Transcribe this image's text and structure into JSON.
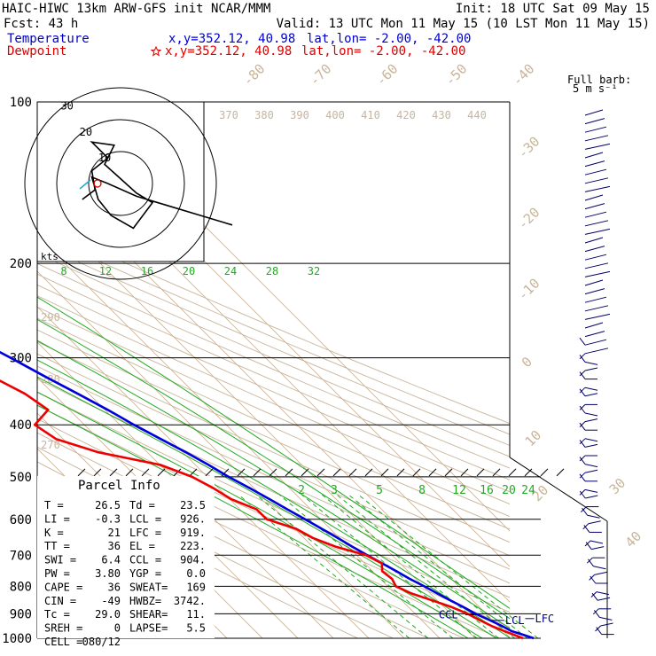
{
  "header": {
    "model": "HAIC-HIWC 13km ARW-GFS init   NCAR/MMM",
    "init": "Init: 18 UTC Sat 09 May 15",
    "fcst": "Fcst:   43 h",
    "valid": "Valid: 13 UTC Mon 11 May 15 (10 LST Mon 11 May 15)",
    "temp_label": "Temperature",
    "temp_xy": "x,y=352.12, 40.98",
    "temp_latlon": "lat,lon= -2.00, -42.00",
    "dew_label": "Dewpoint",
    "dew_xy": "x,y=352.12, 40.98",
    "dew_latlon": "lat,lon= -2.00, -42.00",
    "star_icon": "star-icon"
  },
  "colors": {
    "temperature": "#0000dd",
    "dewpoint": "#ee0000",
    "isotherm": "#c8b49a",
    "dry_adiabat": "#c8b49a",
    "moist_adiabat": "#22aa22",
    "mixing_ratio": "#22aa22",
    "isobar": "#000000"
  },
  "chart_data": {
    "type": "line",
    "title": "",
    "pressure_levels": [
      "100",
      "200",
      "300",
      "400",
      "500",
      "600",
      "700",
      "800",
      "900",
      "1000"
    ],
    "isotherm_labels": [
      "-80",
      "-70",
      "-60",
      "-50",
      "-40",
      "-30",
      "-20",
      "-10",
      "0",
      "10",
      "20",
      "30",
      "40"
    ],
    "theta_labels": [
      "370",
      "380",
      "390",
      "400",
      "410",
      "420",
      "430",
      "440"
    ],
    "theta_lower_labels": [
      "290",
      "280",
      "270"
    ],
    "mixing_upper_labels": [
      "8",
      "12",
      "16",
      "20",
      "24",
      "28",
      "32"
    ],
    "mixing_lower_labels": [
      "2",
      "3",
      "5",
      "8",
      "12",
      "16",
      "20",
      "24"
    ],
    "series": [
      {
        "kind": "temperature",
        "pressure": [
          1000,
          985,
          970,
          950,
          925,
          900,
          875,
          850,
          825,
          800,
          775,
          750,
          725,
          700,
          675,
          650,
          625,
          600,
          575,
          550,
          525,
          500,
          475,
          450,
          425,
          400,
          375,
          350,
          325,
          300,
          275,
          250,
          225,
          200,
          175,
          150,
          125,
          100
        ],
        "temp": [
          26.5,
          24.5,
          22.3,
          21.1,
          19.2,
          17.0,
          15.5,
          13.7,
          12.0,
          10.3,
          8.3,
          6.7,
          4.9,
          3.0,
          1.2,
          -0.5,
          -2.4,
          -4.4,
          -6.6,
          -8.8,
          -11.2,
          -14.0,
          -16.3,
          -19.1,
          -22.5,
          -26.0,
          -29.2,
          -33.1,
          -37.5,
          -41.9,
          -47.0,
          -52.3,
          -57.6,
          -63.5,
          -70.0,
          -76.6,
          -80.9,
          -81.3
        ]
      },
      {
        "kind": "dewpoint",
        "pressure": [
          1000,
          975,
          950,
          925,
          900,
          875,
          850,
          825,
          800,
          775,
          750,
          725,
          700,
          675,
          650,
          625,
          600,
          575,
          550,
          525,
          500,
          475,
          450,
          425,
          400,
          375,
          350,
          325,
          300,
          275,
          250,
          225,
          200,
          175,
          150,
          125,
          100
        ],
        "temp": [
          23.5,
          20.8,
          18.2,
          16.4,
          14.8,
          12.2,
          8.6,
          4.7,
          2.3,
          3.3,
          2.7,
          4.8,
          2.7,
          -3.5,
          -7.5,
          -9.6,
          -15.2,
          -15.3,
          -19.6,
          -21.5,
          -24.3,
          -29.9,
          -43.8,
          -52.0,
          -54.0,
          -46.0,
          -48.0,
          -52.5,
          -54.0,
          -55.0,
          -69.5,
          -72.0,
          -67.0,
          -72.0,
          -81.5,
          -91.5,
          -102.5
        ]
      }
    ],
    "levels_marked": [
      {
        "label": "EL",
        "pressure": 223
      },
      {
        "label": "CCL",
        "pressure": 904
      },
      {
        "label": "LCL",
        "pressure": 926
      },
      {
        "label": "LFC",
        "pressure": 919
      }
    ],
    "wind_header": "Full barb:",
    "wind_unit": "5 m s⁻¹",
    "hodograph": {
      "units": "kts",
      "ring_labels": [
        "10",
        "20",
        "30"
      ],
      "u": [
        -12,
        -8,
        -9,
        -4,
        -9,
        -2,
        -5,
        5,
        10,
        4,
        -3,
        -7,
        -9,
        -4,
        5,
        15,
        25,
        35
      ],
      "v": [
        -5,
        -2,
        4,
        8,
        13,
        12,
        6,
        -3,
        -6,
        -14,
        -10,
        -5,
        2,
        0,
        -4,
        -7,
        -10,
        -13
      ]
    }
  },
  "parcel_info": {
    "title": "Parcel Info",
    "rows": [
      {
        "k1": "T   =",
        "v1": "26.5",
        "k2": "Td =",
        "v2": "23.5"
      },
      {
        "k1": "LI  =",
        "v1": "-0.3",
        "k2": "LCL =",
        "v2": "926."
      },
      {
        "k1": "K   =",
        "v1": "21",
        "k2": "LFC =",
        "v2": "919."
      },
      {
        "k1": "TT  =",
        "v1": "36",
        "k2": "EL  =",
        "v2": "223."
      },
      {
        "k1": "SWI =",
        "v1": "6.4",
        "k2": "CCL =",
        "v2": "904."
      },
      {
        "k1": "PW  =",
        "v1": "3.80",
        "k2": "YGP =",
        "v2": "0.0"
      },
      {
        "k1": "CAPE =",
        "v1": "36",
        "k2": "SWEAT=",
        "v2": "169"
      },
      {
        "k1": "CIN =",
        "v1": "-49",
        "k2": "HWBZ=",
        "v2": "3742."
      },
      {
        "k1": "Tc  =",
        "v1": "29.0",
        "k2": "SHEAR=",
        "v2": "11."
      },
      {
        "k1": "SREH =",
        "v1": "0",
        "k2": "LAPSE=",
        "v2": "5.5"
      },
      {
        "k1": "CELL =",
        "v1": "080/12",
        "k2": "",
        "v2": ""
      }
    ]
  }
}
